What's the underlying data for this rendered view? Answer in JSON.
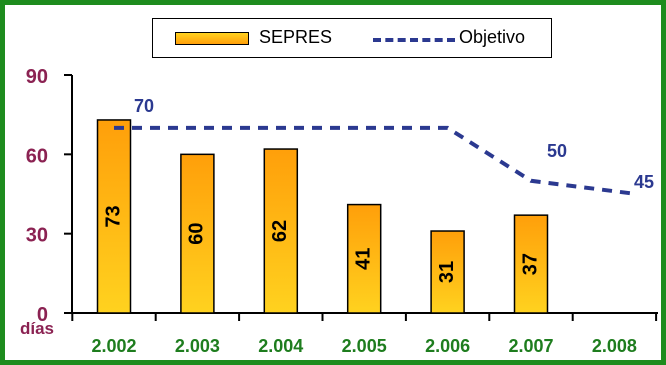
{
  "chart_data": {
    "type": "bar",
    "categories": [
      "2.002",
      "2.003",
      "2.004",
      "2.005",
      "2.006",
      "2.007",
      "2.008"
    ],
    "series": [
      {
        "name": "SEPRES",
        "type": "bar",
        "values": [
          73,
          60,
          62,
          41,
          31,
          37,
          null
        ],
        "data_labels": [
          "73",
          "60",
          "62",
          "41",
          "31",
          "37",
          ""
        ]
      },
      {
        "name": "Objetivo",
        "type": "line",
        "style": "dashed",
        "values": [
          70,
          70,
          70,
          70,
          70,
          50,
          45
        ]
      }
    ],
    "objective_labels": [
      {
        "category": "2.002",
        "text": "70"
      },
      {
        "category": "2.007",
        "text": "50"
      },
      {
        "category": "2.008",
        "text": "45"
      }
    ],
    "ylabel": "días",
    "yticks": [
      "0",
      "30",
      "60",
      "90"
    ],
    "ylim": [
      0,
      90
    ],
    "legend_position": "top",
    "colors": {
      "bar_top": "#ff9f0a",
      "bar_bottom": "#ffd21f",
      "objective_line": "#2b3990",
      "y_tick_labels": "#8b2252",
      "x_tick_labels": "#1e7d1e",
      "frame": "#1e8c1e"
    }
  }
}
